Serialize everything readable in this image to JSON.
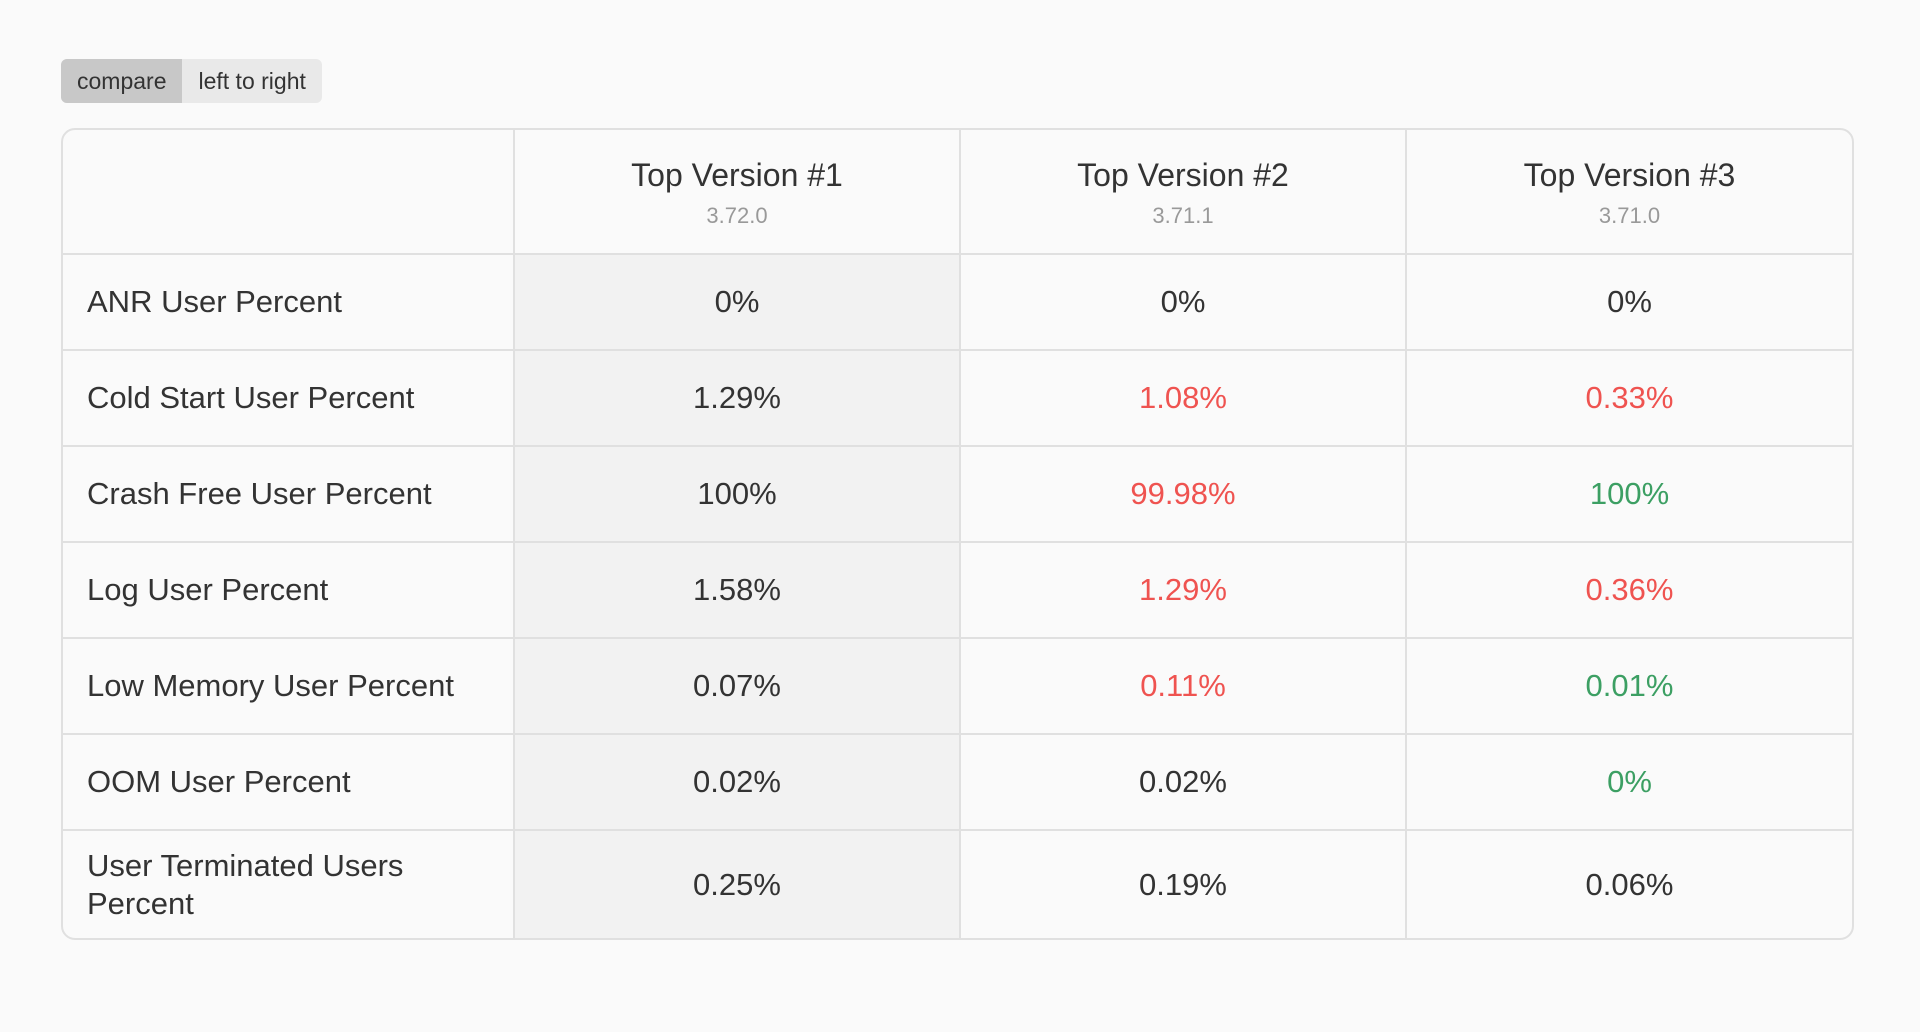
{
  "toolbar": {
    "compare_label": "compare",
    "direction_label": "left to right"
  },
  "table": {
    "versions": [
      {
        "title": "Top Version #1",
        "version": "3.72.0"
      },
      {
        "title": "Top Version #2",
        "version": "3.71.1"
      },
      {
        "title": "Top Version #3",
        "version": "3.71.0"
      }
    ],
    "rows": [
      {
        "label": "ANR User Percent",
        "values": [
          "0%",
          "0%",
          "0%"
        ],
        "status": [
          "base",
          "neutral",
          "neutral"
        ]
      },
      {
        "label": "Cold Start User Percent",
        "values": [
          "1.29%",
          "1.08%",
          "0.33%"
        ],
        "status": [
          "base",
          "worse",
          "worse"
        ]
      },
      {
        "label": "Crash Free User Percent",
        "values": [
          "100%",
          "99.98%",
          "100%"
        ],
        "status": [
          "base",
          "worse",
          "better"
        ]
      },
      {
        "label": "Log User Percent",
        "values": [
          "1.58%",
          "1.29%",
          "0.36%"
        ],
        "status": [
          "base",
          "worse",
          "worse"
        ]
      },
      {
        "label": "Low Memory User Percent",
        "values": [
          "0.07%",
          "0.11%",
          "0.01%"
        ],
        "status": [
          "base",
          "worse",
          "better"
        ]
      },
      {
        "label": "OOM User Percent",
        "values": [
          "0.02%",
          "0.02%",
          "0%"
        ],
        "status": [
          "base",
          "neutral",
          "better"
        ]
      },
      {
        "label": "User Terminated Users Percent",
        "values": [
          "0.25%",
          "0.19%",
          "0.06%"
        ],
        "status": [
          "base",
          "neutral",
          "neutral"
        ]
      }
    ]
  },
  "colors": {
    "worse": "#ef5350",
    "better": "#3c9f63",
    "base_background": "#f2f2f2",
    "border": "#e0e0e0"
  }
}
